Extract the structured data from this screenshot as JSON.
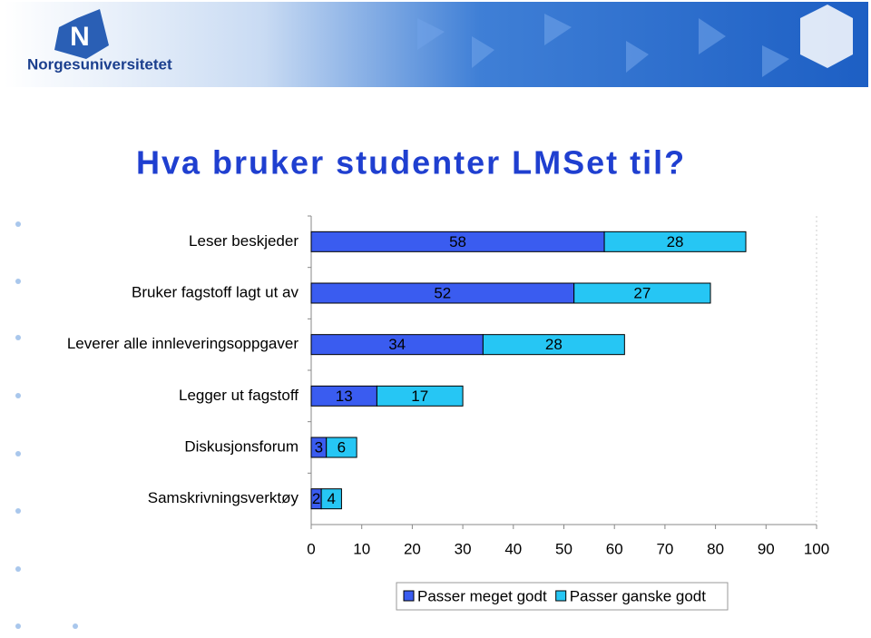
{
  "header": {
    "logo_text": "Norgesuniversitetet"
  },
  "chart_data": {
    "type": "stacked-bar-horizontal",
    "title": "Hva bruker studenter LMSet til?",
    "categories": [
      "Leser beskjeder",
      "Bruker fagstoff lagt ut av",
      "Leverer alle innleveringsoppgaver",
      "Legger ut fagstoff",
      "Diskusjonsforum",
      "Samskrivningsverktøy"
    ],
    "series": [
      {
        "name": "Passer meget godt",
        "color": "#3a5cf0",
        "values": [
          58,
          52,
          34,
          13,
          3,
          2
        ]
      },
      {
        "name": "Passer ganske godt",
        "color": "#26c6f4",
        "values": [
          28,
          27,
          28,
          17,
          6,
          4
        ]
      }
    ],
    "xlim": [
      0,
      100
    ],
    "xticks": [
      0,
      10,
      20,
      30,
      40,
      50,
      60,
      70,
      80,
      90,
      100
    ],
    "legend": "bottom"
  }
}
